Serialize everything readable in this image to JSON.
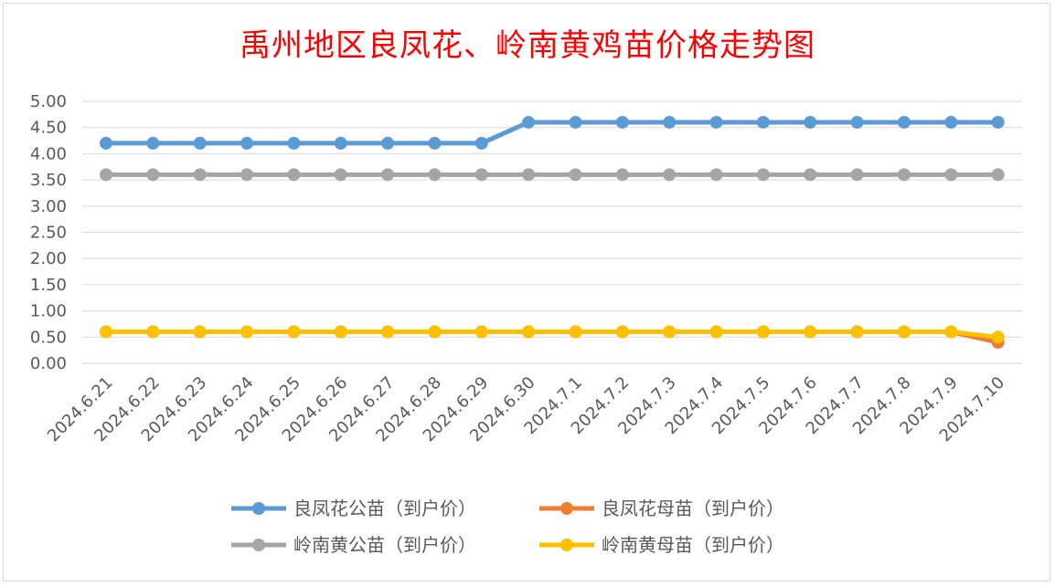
{
  "chart_data": {
    "type": "line",
    "title": "禹州地区良凤花、岭南黄鸡苗价格走势图",
    "xlabel": "",
    "ylabel": "",
    "ylim": [
      0,
      5
    ],
    "ytick_labels": [
      "0.00",
      "0.50",
      "1.00",
      "1.50",
      "2.00",
      "2.50",
      "3.00",
      "3.50",
      "4.00",
      "4.50",
      "5.00"
    ],
    "categories": [
      "2024.6.21",
      "2024.6.22",
      "2024.6.23",
      "2024.6.24",
      "2024.6.25",
      "2024.6.26",
      "2024.6.27",
      "2024.6.28",
      "2024.6.29",
      "2024.6.30",
      "2024.7.1",
      "2024.7.2",
      "2024.7.3",
      "2024.7.4",
      "2024.7.5",
      "2024.7.6",
      "2024.7.7",
      "2024.7.8",
      "2024.7.9",
      "2024.7.10"
    ],
    "grid": true,
    "legend_position": "bottom",
    "series": [
      {
        "name": "良凤花公苗（到户价）",
        "color": "#5b9bd5",
        "values": [
          4.2,
          4.2,
          4.2,
          4.2,
          4.2,
          4.2,
          4.2,
          4.2,
          4.2,
          4.6,
          4.6,
          4.6,
          4.6,
          4.6,
          4.6,
          4.6,
          4.6,
          4.6,
          4.6,
          4.6
        ]
      },
      {
        "name": "良凤花母苗（到户价）",
        "color": "#ed7d31",
        "values": [
          0.6,
          0.6,
          0.6,
          0.6,
          0.6,
          0.6,
          0.6,
          0.6,
          0.6,
          0.6,
          0.6,
          0.6,
          0.6,
          0.6,
          0.6,
          0.6,
          0.6,
          0.6,
          0.6,
          0.4
        ]
      },
      {
        "name": "岭南黄公苗（到户价）",
        "color": "#a5a5a5",
        "values": [
          3.6,
          3.6,
          3.6,
          3.6,
          3.6,
          3.6,
          3.6,
          3.6,
          3.6,
          3.6,
          3.6,
          3.6,
          3.6,
          3.6,
          3.6,
          3.6,
          3.6,
          3.6,
          3.6,
          3.6
        ]
      },
      {
        "name": "岭南黄母苗（到户价）",
        "color": "#ffc000",
        "values": [
          0.6,
          0.6,
          0.6,
          0.6,
          0.6,
          0.6,
          0.6,
          0.6,
          0.6,
          0.6,
          0.6,
          0.6,
          0.6,
          0.6,
          0.6,
          0.6,
          0.6,
          0.6,
          0.6,
          0.5
        ]
      }
    ]
  }
}
